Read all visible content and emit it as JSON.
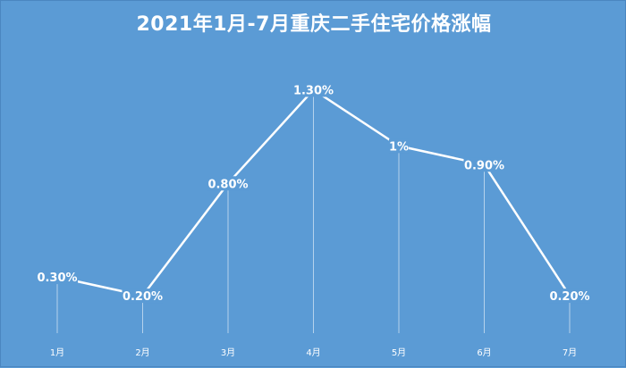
{
  "chart_data": {
    "type": "line",
    "title": "2021年1月-7月重庆二手住宅价格涨幅",
    "categories": [
      "1月",
      "2月",
      "3月",
      "4月",
      "5月",
      "6月",
      "7月"
    ],
    "series": [
      {
        "values": [
          0.3,
          0.2,
          0.8,
          1.3,
          1.0,
          0.9,
          0.2
        ],
        "labels": [
          "0.30%",
          "0.20%",
          "0.80%",
          "1.30%",
          "1%",
          "0.90%",
          "0.20%"
        ]
      }
    ],
    "ylim": [
      0,
      1.35
    ],
    "grid": false,
    "drop_lines": true,
    "colors": {
      "background": "#5b9bd5",
      "line": "#ffffff",
      "text": "#ffffff"
    }
  }
}
